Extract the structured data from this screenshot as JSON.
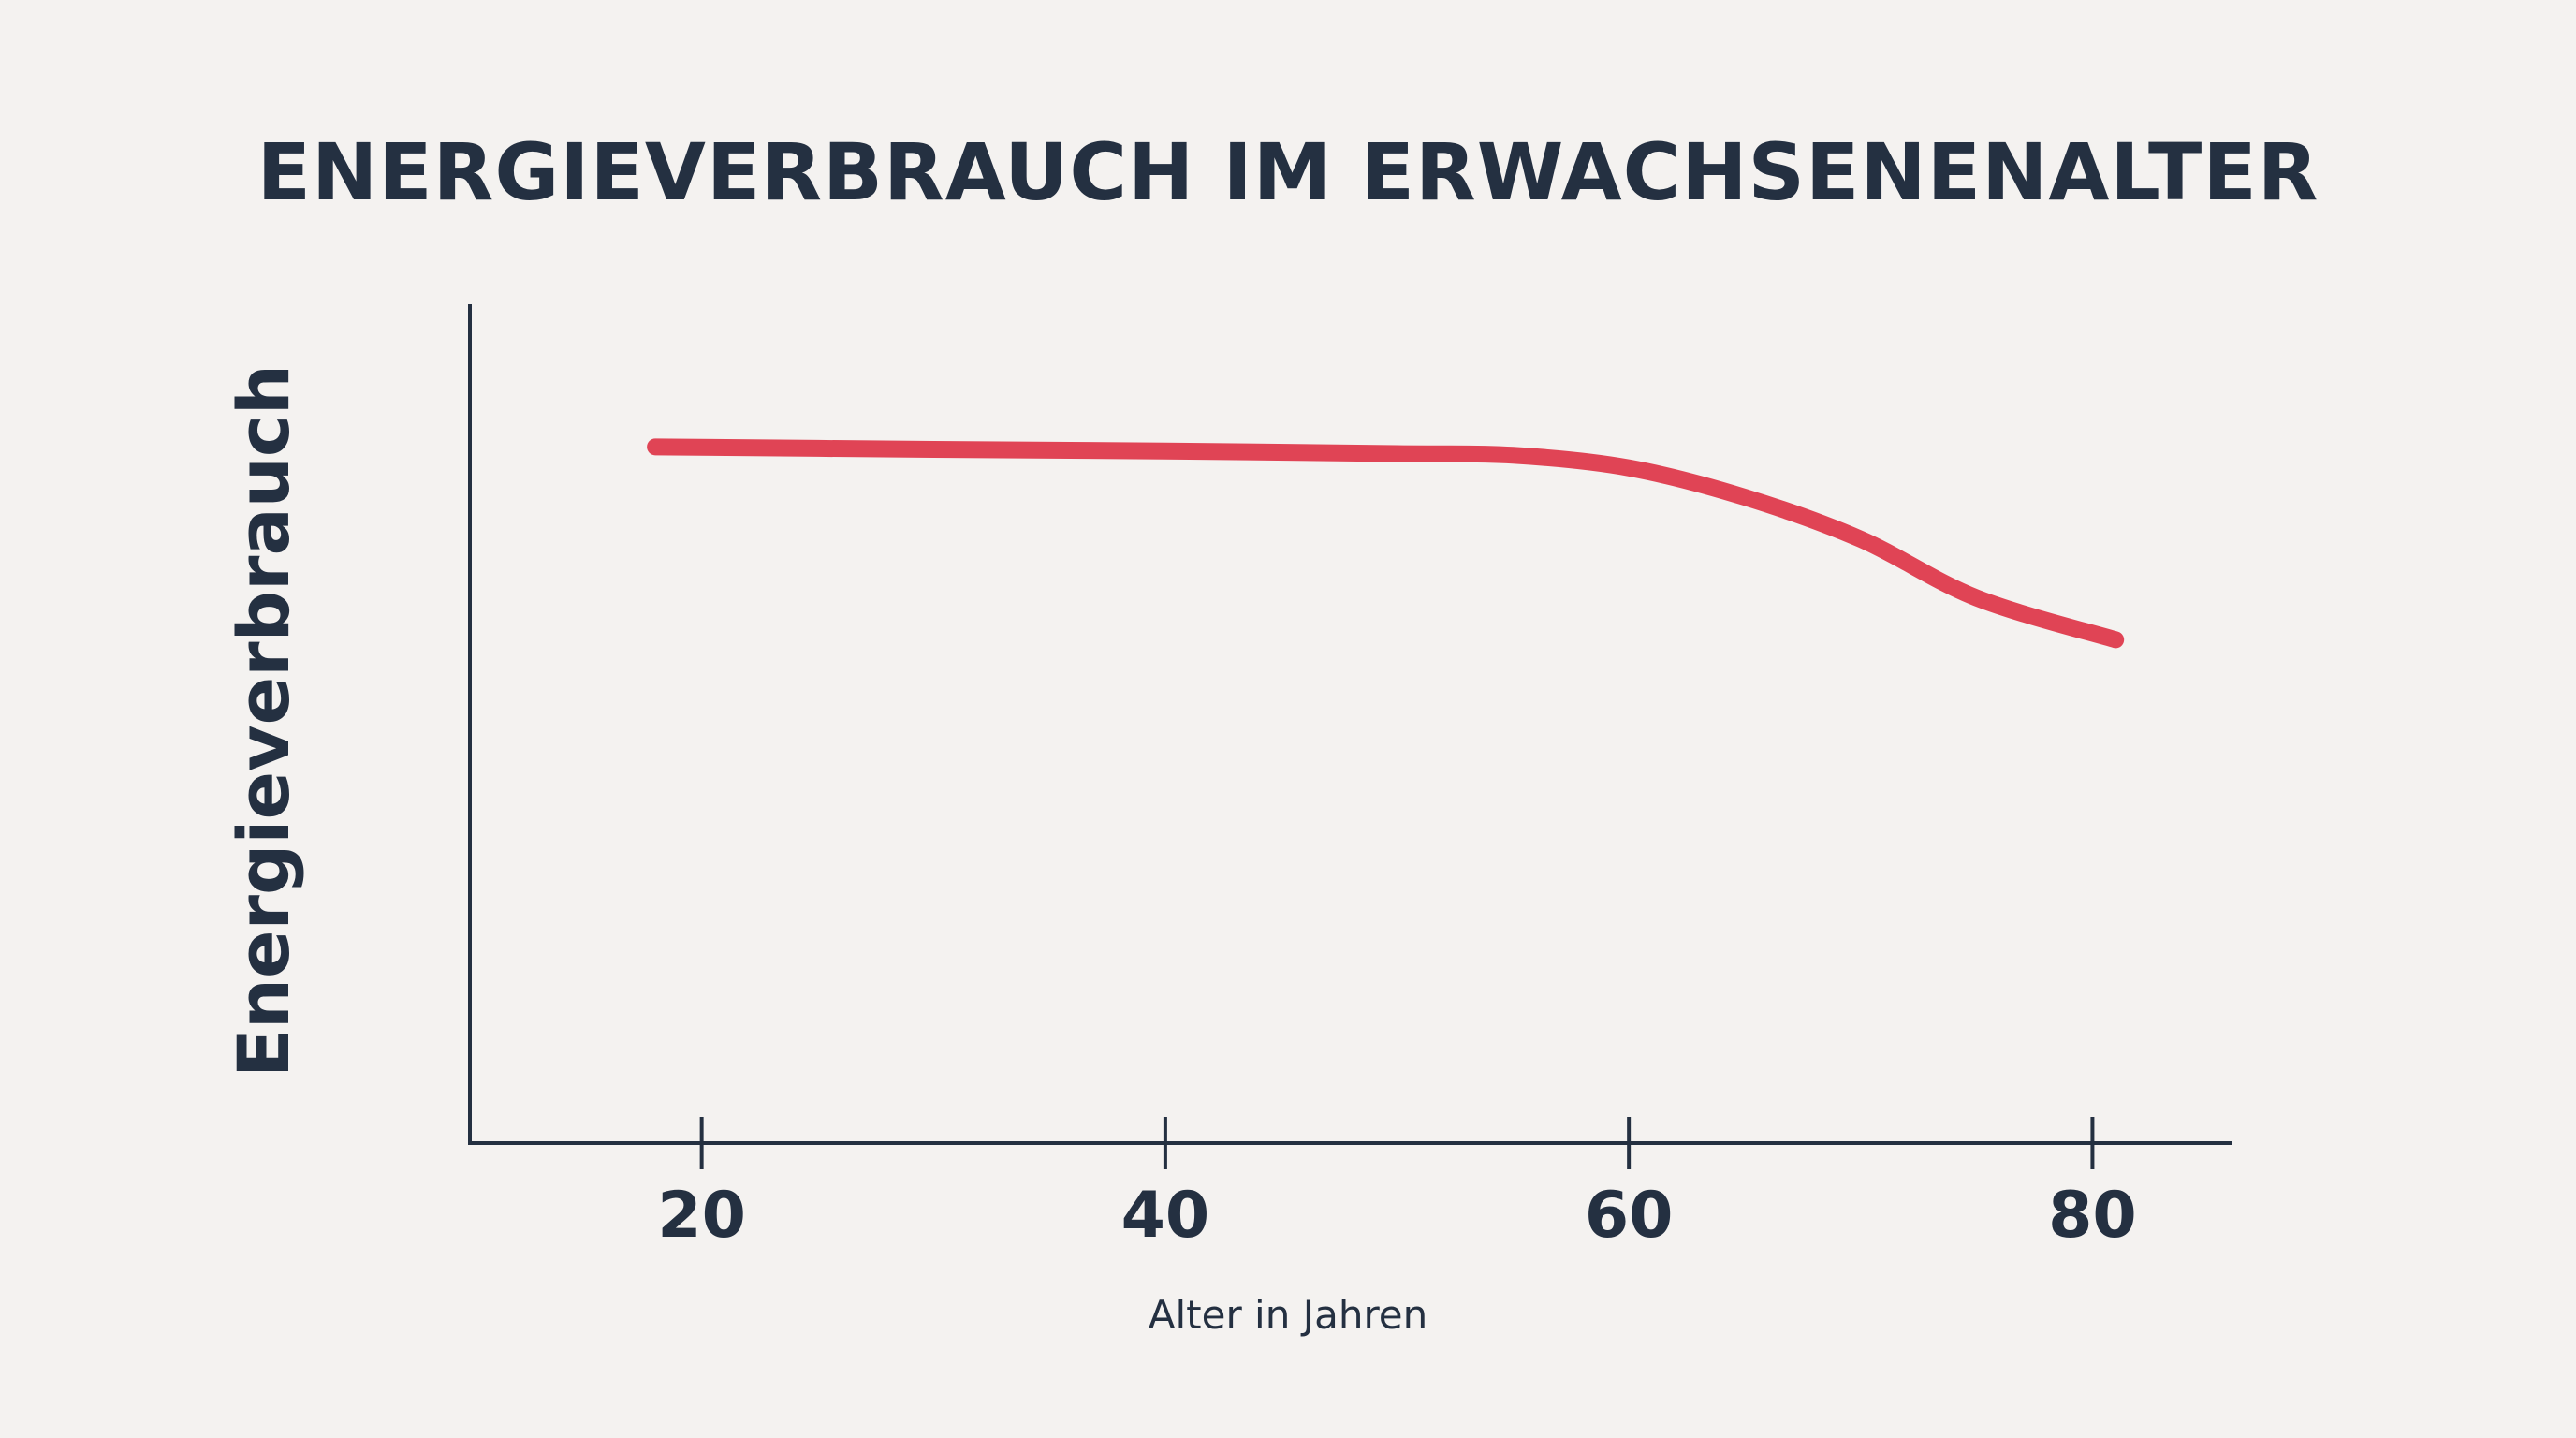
{
  "chart_data": {
    "type": "line",
    "title": "ENERGIEVERBRAUCH IM ERWACHSENENALTER",
    "xlabel": "Alter in Jahren",
    "ylabel": "Energieverbrauch",
    "x_ticks": [
      20,
      40,
      60,
      80
    ],
    "xlim": [
      10,
      86
    ],
    "ylim": [
      0,
      100
    ],
    "grid": false,
    "series": [
      {
        "color": "#e04455",
        "x": [
          18,
          30,
          40,
          50,
          55,
          60,
          65,
          70,
          75,
          81
        ],
        "y": [
          83,
          82.7,
          82.5,
          82.2,
          82,
          80.5,
          77,
          72,
          65,
          60
        ]
      }
    ]
  }
}
